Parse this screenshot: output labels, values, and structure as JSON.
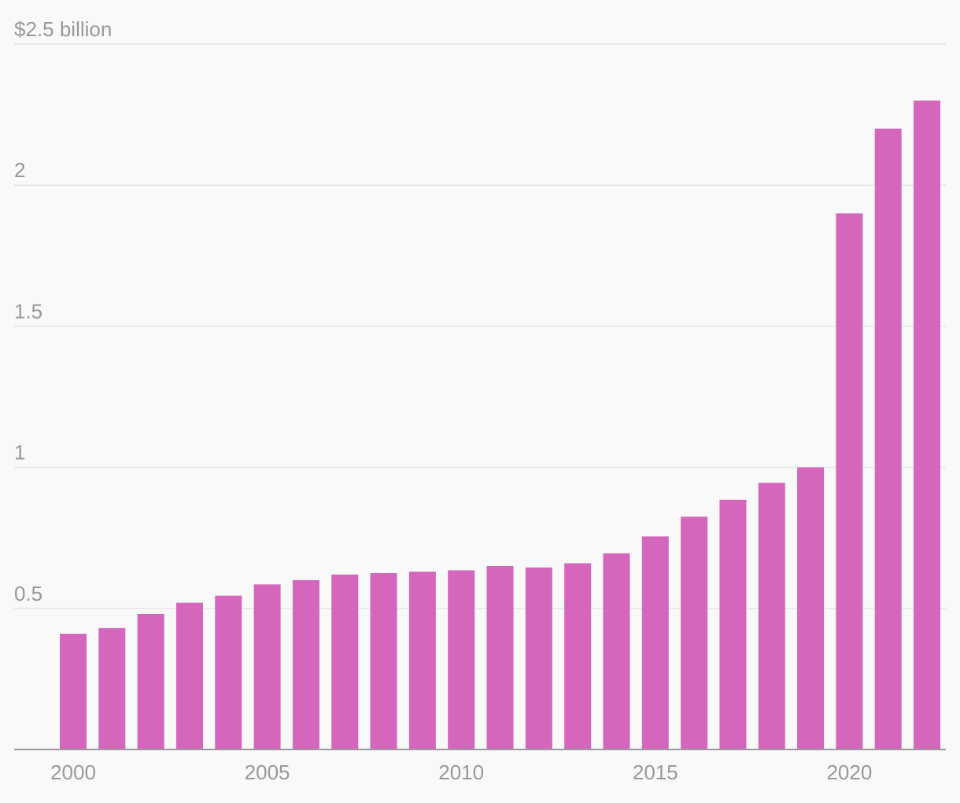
{
  "chart_data": {
    "type": "bar",
    "title": "",
    "xlabel": "",
    "ylabel": "",
    "unit_label": "$2.5 billion",
    "ylim": [
      0,
      2.5
    ],
    "y_ticks": [
      {
        "value": 0.5,
        "label": "0.5"
      },
      {
        "value": 1,
        "label": "1"
      },
      {
        "value": 1.5,
        "label": "1.5"
      },
      {
        "value": 2,
        "label": "2"
      },
      {
        "value": 2.5,
        "label": "$2.5 billion"
      }
    ],
    "x_ticks": [
      {
        "year": 2000,
        "label": "2000"
      },
      {
        "year": 2005,
        "label": "2005"
      },
      {
        "year": 2010,
        "label": "2010"
      },
      {
        "year": 2015,
        "label": "2015"
      },
      {
        "year": 2020,
        "label": "2020"
      }
    ],
    "categories": [
      2000,
      2001,
      2002,
      2003,
      2004,
      2005,
      2006,
      2007,
      2008,
      2009,
      2010,
      2011,
      2012,
      2013,
      2014,
      2015,
      2016,
      2017,
      2018,
      2019,
      2020,
      2021,
      2022
    ],
    "values": [
      0.41,
      0.43,
      0.48,
      0.52,
      0.545,
      0.585,
      0.6,
      0.62,
      0.625,
      0.63,
      0.635,
      0.65,
      0.645,
      0.66,
      0.695,
      0.755,
      0.825,
      0.885,
      0.945,
      1.0,
      1.9,
      2.2,
      2.3
    ],
    "colors": {
      "bar": "#d466bb",
      "grid": "#e6e6e6",
      "axis": "#999999",
      "tick_text": "#999999"
    }
  }
}
